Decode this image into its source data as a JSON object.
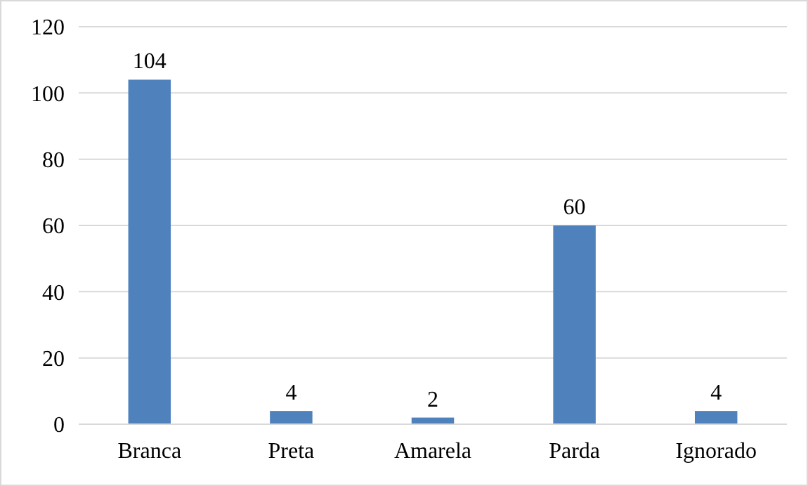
{
  "chart_data": {
    "type": "bar",
    "categories": [
      "Branca",
      "Preta",
      "Amarela",
      "Parda",
      "Ignorado"
    ],
    "series": [
      {
        "color": "#4f81bd",
        "values": [
          104,
          4,
          2,
          60,
          4
        ]
      }
    ],
    "ylim": [
      0,
      120
    ],
    "yticks": [
      0,
      20,
      40,
      60,
      80,
      100,
      120
    ],
    "grid": "y",
    "data_labels": true
  }
}
